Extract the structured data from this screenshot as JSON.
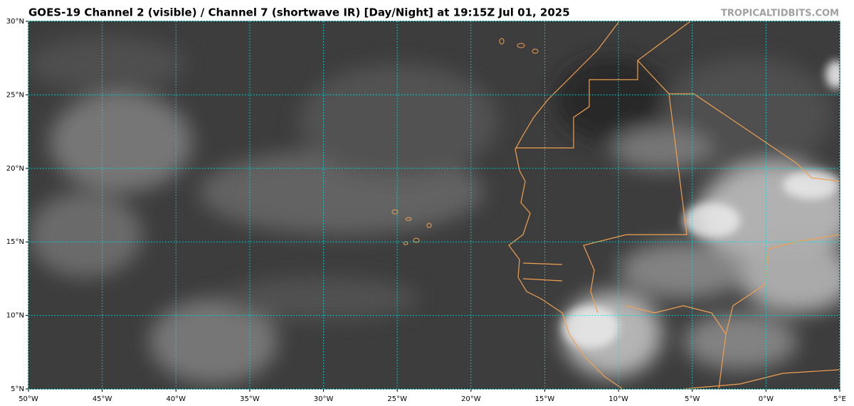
{
  "header": {
    "title": "GOES-19 Channel 2 (visible) / Channel 7 (shortwave IR) [Day/Night] at 19:15Z Jul 01, 2025",
    "credit": "TROPICALTIDBITS.COM"
  },
  "map": {
    "lonlim": [
      -50,
      5
    ],
    "latlim": [
      5,
      30
    ],
    "lon_ticks": [
      {
        "value": -50,
        "label": "50°W"
      },
      {
        "value": -45,
        "label": "45°W"
      },
      {
        "value": -40,
        "label": "40°W"
      },
      {
        "value": -35,
        "label": "35°W"
      },
      {
        "value": -30,
        "label": "30°W"
      },
      {
        "value": -25,
        "label": "25°W"
      },
      {
        "value": -20,
        "label": "20°W"
      },
      {
        "value": -15,
        "label": "15°W"
      },
      {
        "value": -10,
        "label": "10°W"
      },
      {
        "value": -5,
        "label": "5°W"
      },
      {
        "value": 0,
        "label": "0°W"
      },
      {
        "value": 5,
        "label": "5°E"
      }
    ],
    "lat_ticks": [
      {
        "value": 30,
        "label": "30°N"
      },
      {
        "value": 25,
        "label": "25°N"
      },
      {
        "value": 20,
        "label": "20°N"
      },
      {
        "value": 15,
        "label": "15°N"
      },
      {
        "value": 10,
        "label": "10°N"
      },
      {
        "value": 5,
        "label": "5°N"
      }
    ]
  }
}
